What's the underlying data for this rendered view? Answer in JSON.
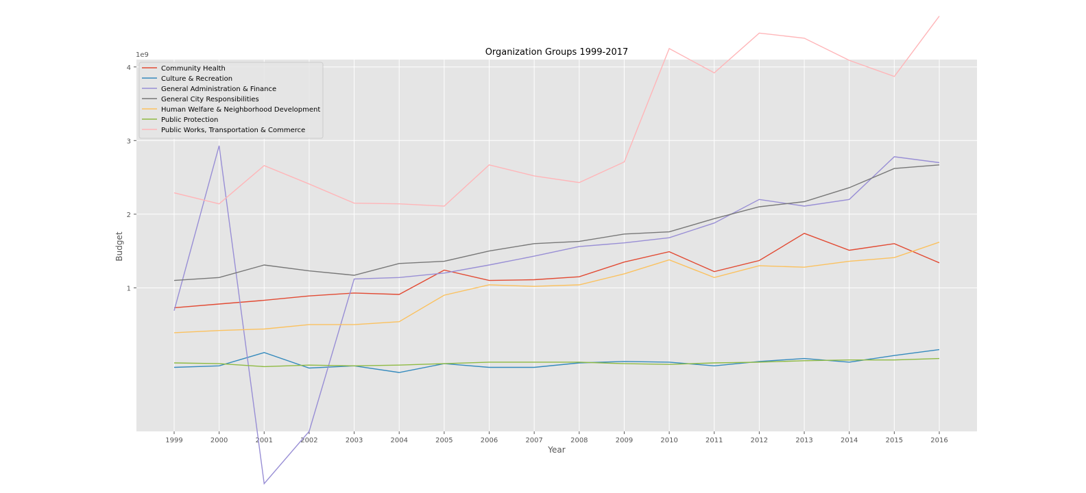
{
  "chart_data": {
    "type": "line",
    "title": "Organization Groups 1999-2017",
    "xlabel": "Year",
    "ylabel": "Budget",
    "y_multiplier_label": "1e9",
    "x": [
      1999,
      2000,
      2001,
      2002,
      2003,
      2004,
      2005,
      2006,
      2007,
      2008,
      2009,
      2010,
      2011,
      2012,
      2013,
      2014,
      2015,
      2016
    ],
    "x_tick_labels": [
      "1999",
      "2000",
      "2001",
      "2002",
      "2003",
      "2004",
      "2005",
      "2006",
      "2007",
      "2008",
      "2009",
      "2010",
      "2011",
      "2012",
      "2013",
      "2014",
      "2015",
      "2016"
    ],
    "y_ticks": [
      1,
      2,
      3,
      4
    ],
    "y_tick_labels": [
      "1",
      "2",
      "3",
      "4"
    ],
    "ylim": [
      -0.95,
      4.1
    ],
    "grid": true,
    "legend_position": "upper-left",
    "series": [
      {
        "name": "Community Health",
        "color": "#e24a33",
        "values": [
          0.73,
          0.78,
          0.83,
          0.89,
          0.93,
          0.91,
          1.24,
          1.1,
          1.11,
          1.15,
          1.35,
          1.49,
          1.22,
          1.37,
          1.74,
          1.51,
          1.6,
          1.34
        ]
      },
      {
        "name": "Culture & Recreation",
        "color": "#348abd",
        "values": [
          -0.08,
          -0.06,
          0.12,
          -0.09,
          -0.06,
          -0.15,
          -0.03,
          -0.08,
          -0.08,
          -0.02,
          0.0,
          -0.01,
          -0.06,
          0.0,
          0.04,
          -0.01,
          0.08,
          0.16
        ]
      },
      {
        "name": "General Administration & Finance",
        "color": "#988ed5",
        "values": [
          0.69,
          2.93,
          -1.66,
          -0.95,
          1.12,
          1.14,
          1.2,
          1.31,
          1.43,
          1.56,
          1.61,
          1.68,
          1.88,
          2.2,
          2.11,
          2.2,
          2.78,
          2.7
        ]
      },
      {
        "name": "General City Responsibilities",
        "color": "#777777",
        "values": [
          1.1,
          1.14,
          1.31,
          1.23,
          1.17,
          1.33,
          1.36,
          1.5,
          1.6,
          1.63,
          1.73,
          1.76,
          1.94,
          2.1,
          2.17,
          2.36,
          2.62,
          2.67
        ]
      },
      {
        "name": "Human Welfare & Neighborhood Development",
        "color": "#fbc15e",
        "values": [
          0.39,
          0.42,
          0.44,
          0.5,
          0.5,
          0.54,
          0.9,
          1.04,
          1.02,
          1.04,
          1.19,
          1.38,
          1.14,
          1.3,
          1.28,
          1.36,
          1.41,
          1.62
        ]
      },
      {
        "name": "Public Protection",
        "color": "#8eba42",
        "values": [
          -0.02,
          -0.03,
          -0.07,
          -0.05,
          -0.06,
          -0.05,
          -0.03,
          -0.01,
          -0.01,
          -0.01,
          -0.03,
          -0.04,
          -0.02,
          -0.01,
          0.01,
          0.02,
          0.02,
          0.04
        ]
      },
      {
        "name": "Public Works, Transportation & Commerce",
        "color": "#ffb5b8",
        "values": [
          2.29,
          2.14,
          2.66,
          2.41,
          2.15,
          2.14,
          2.11,
          2.67,
          2.52,
          2.43,
          2.71,
          4.25,
          3.92,
          4.46,
          4.39,
          4.09,
          3.87,
          4.69
        ]
      }
    ]
  }
}
